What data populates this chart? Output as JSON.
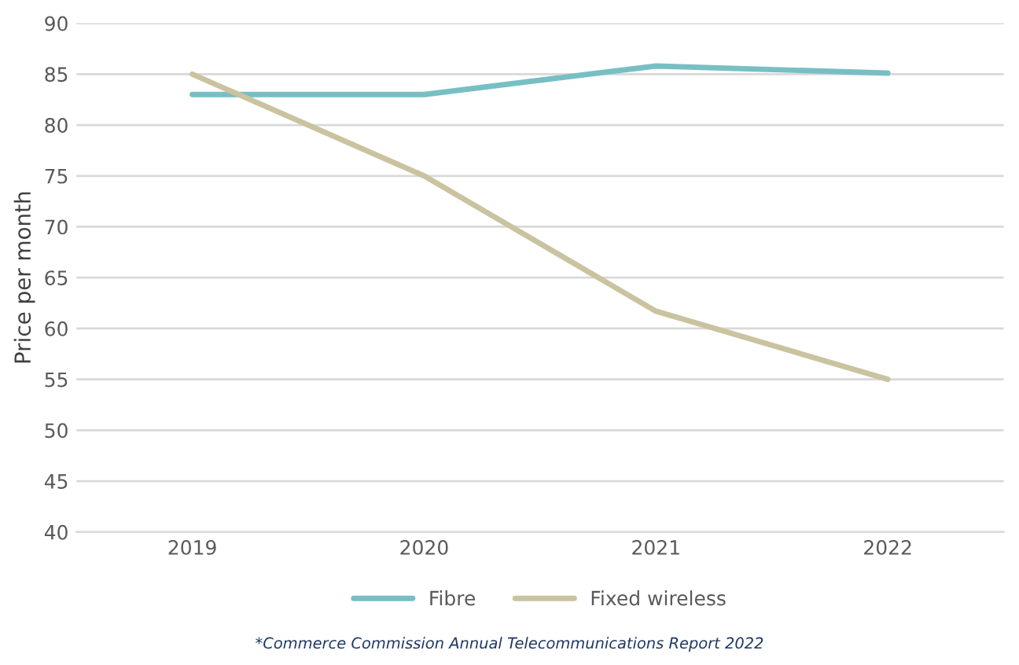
{
  "chart_data": {
    "type": "line",
    "categories": [
      "2019",
      "2020",
      "2021",
      "2022"
    ],
    "series": [
      {
        "name": "Fibre",
        "color": "#78bfc4",
        "values": [
          83,
          83,
          85.8,
          85.1
        ]
      },
      {
        "name": "Fixed wireless",
        "color": "#c9c3a0",
        "values": [
          85,
          75,
          61.7,
          55
        ]
      }
    ],
    "ylabel": "Price per month",
    "ylim": [
      40,
      90
    ],
    "yticks": [
      40,
      45,
      50,
      55,
      60,
      65,
      70,
      75,
      80,
      85,
      90
    ],
    "grid": "y",
    "legend": "bottom",
    "marker": "none",
    "line_style": "solid",
    "annotations": [
      "*Commerce Commission Annual Telecommunications Report 2022"
    ]
  }
}
